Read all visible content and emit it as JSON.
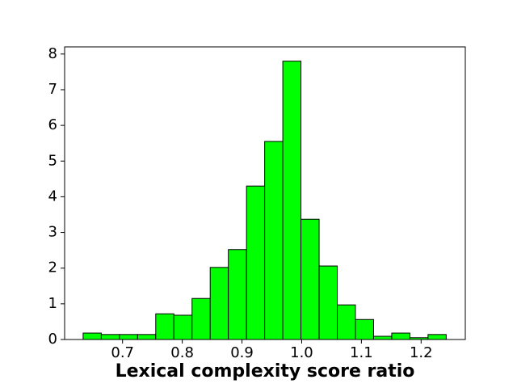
{
  "chart_data": {
    "type": "histogram",
    "x_label": "Lexical complexity score ratio",
    "bins": [
      0.634,
      0.6644,
      0.6948,
      0.7252,
      0.7556,
      0.786,
      0.8164,
      0.8468,
      0.8772,
      0.9076,
      0.938,
      0.9684,
      0.9988,
      1.0292,
      1.0596,
      1.09,
      1.1204,
      1.1508,
      1.1812,
      1.2116,
      1.242
    ],
    "values": [
      0.18,
      0.14,
      0.14,
      0.14,
      0.72,
      0.68,
      1.15,
      2.02,
      2.52,
      4.3,
      5.55,
      7.8,
      3.37,
      2.06,
      0.97,
      0.56,
      0.09,
      0.18,
      0.05,
      0.14
    ],
    "color": "#00ff00",
    "edge_color": "#000000",
    "xlim": [
      0.603,
      1.274
    ],
    "ylim": [
      0,
      8.2
    ],
    "xticks": [
      0.7,
      0.8,
      0.9,
      {
        "value": 1,
        "label": "1.0"
      },
      1.1,
      1.2
    ],
    "yticks": [
      0,
      1,
      2,
      3,
      4,
      5,
      6,
      7,
      8
    ],
    "grid": false
  }
}
